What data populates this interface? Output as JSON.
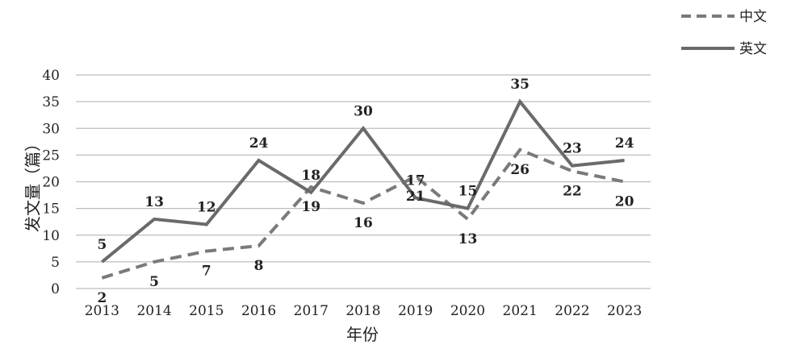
{
  "chart_data": {
    "type": "line",
    "x": [
      "2013",
      "2014",
      "2015",
      "2016",
      "2017",
      "2018",
      "2019",
      "2020",
      "2021",
      "2022",
      "2023"
    ],
    "xlabel": "年份",
    "ylabel": "发文量（篇）",
    "ylim": [
      0,
      40
    ],
    "yticks": [
      0,
      5,
      10,
      15,
      20,
      25,
      30,
      35,
      40
    ],
    "grid": true,
    "legend_position": "top-right",
    "series": [
      {
        "name": "中文",
        "style": "dashed",
        "color": "#7a7a7a",
        "values": [
          2,
          5,
          7,
          8,
          19,
          16,
          21,
          13,
          26,
          22,
          20
        ]
      },
      {
        "name": "英文",
        "style": "solid",
        "color": "#6a6a6a",
        "values": [
          5,
          13,
          12,
          24,
          18,
          30,
          17,
          15,
          35,
          23,
          24
        ]
      }
    ]
  }
}
